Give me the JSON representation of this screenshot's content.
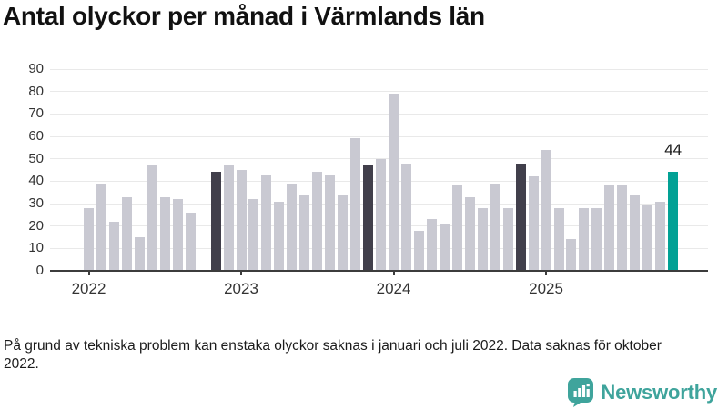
{
  "title": "Antal olyckor per månad i Värmlands län",
  "footnote": "På grund av tekniska problem kan enstaka olyckor saknas i januari och juli 2022. Data saknas för oktober 2022.",
  "logo": {
    "text": "Newsworthy"
  },
  "colors": {
    "bar_default": "#c9c9d2",
    "bar_reference": "#413f4b",
    "bar_current": "#02a195",
    "grid": "#e9e9e9",
    "axis": "#3c3c3c",
    "tick_label": "#333333",
    "title": "#111111",
    "logo": "#3fa49c"
  },
  "chart_data": {
    "type": "bar",
    "title": "Antal olyckor per månad i Värmlands län",
    "xlabel": "",
    "ylabel": "",
    "ylim": [
      0,
      90
    ],
    "yticks": [
      0,
      10,
      20,
      30,
      40,
      50,
      60,
      70,
      80,
      90
    ],
    "grid": true,
    "legend": "none",
    "categories": [
      "2022-01",
      "2022-02",
      "2022-03",
      "2022-04",
      "2022-05",
      "2022-06",
      "2022-07",
      "2022-08",
      "2022-09",
      "2022-10",
      "2022-11",
      "2022-12",
      "2023-01",
      "2023-02",
      "2023-03",
      "2023-04",
      "2023-05",
      "2023-06",
      "2023-07",
      "2023-08",
      "2023-09",
      "2023-10",
      "2023-11",
      "2023-12",
      "2024-01",
      "2024-02",
      "2024-03",
      "2024-04",
      "2024-05",
      "2024-06",
      "2024-07",
      "2024-08",
      "2024-09",
      "2024-10",
      "2024-11",
      "2024-12",
      "2025-01",
      "2025-02",
      "2025-03",
      "2025-04",
      "2025-05",
      "2025-06",
      "2025-07",
      "2025-08",
      "2025-09",
      "2025-10",
      "2025-11"
    ],
    "values": [
      28,
      39,
      22,
      33,
      15,
      47,
      33,
      32,
      26,
      null,
      44,
      47,
      45,
      32,
      43,
      31,
      39,
      34,
      44,
      43,
      34,
      59,
      47,
      50,
      79,
      48,
      18,
      23,
      21,
      38,
      33,
      28,
      39,
      28,
      48,
      42,
      54,
      28,
      14,
      28,
      28,
      38,
      38,
      34,
      29,
      31,
      44
    ],
    "missing_months": [
      "2022-10"
    ],
    "reference_highlight_months": [
      "2022-11",
      "2023-11",
      "2024-11"
    ],
    "current_month": "2025-11",
    "current_value_label": "44",
    "year_ticks": [
      {
        "label": "2022",
        "category": "2022-01"
      },
      {
        "label": "2023",
        "category": "2023-01"
      },
      {
        "label": "2024",
        "category": "2024-01"
      },
      {
        "label": "2025",
        "category": "2025-01"
      }
    ]
  }
}
